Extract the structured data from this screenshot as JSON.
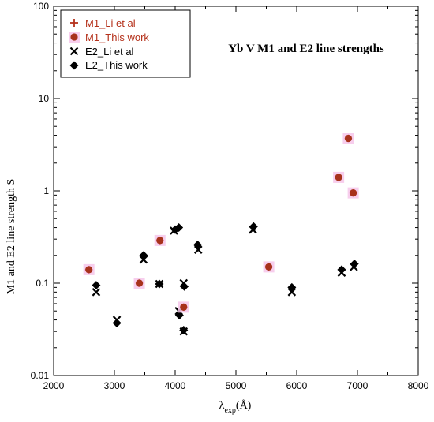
{
  "chart_data": {
    "type": "scatter",
    "title": "Yb V M1 and E2 line strengths",
    "xlabel": "λ",
    "xlabel_sub": "exp",
    "xlabel_unit": "(Å)",
    "ylabel": "M1 and E2 line strength S",
    "xlim": [
      2000,
      8000
    ],
    "ylim": [
      0.01,
      100
    ],
    "yscale": "log",
    "x_ticks": [
      2000,
      3000,
      4000,
      5000,
      6000,
      7000,
      8000
    ],
    "y_ticks": [
      0.01,
      0.1,
      1,
      10,
      100
    ],
    "x_tick_labels": [
      "2000",
      "3000",
      "4000",
      "5000",
      "6000",
      "7000",
      "8000"
    ],
    "y_tick_labels": [
      "0.01",
      "0.1",
      "1",
      "10",
      "100"
    ],
    "legend_position": "top-left",
    "series": [
      {
        "name": "M1_Li et al",
        "marker": "plus",
        "color": "#b5321c",
        "points": [
          [
            2580,
            0.14
          ],
          [
            3410,
            0.1
          ],
          [
            3750,
            0.29
          ],
          [
            4140,
            0.055
          ],
          [
            5540,
            0.15
          ],
          [
            6690,
            1.4
          ],
          [
            6850,
            3.7
          ],
          [
            6930,
            0.95
          ]
        ]
      },
      {
        "name": "M1_This work",
        "marker": "circle",
        "color": "#a8321c",
        "halo": "#f6c6ea",
        "points": [
          [
            2580,
            0.14
          ],
          [
            3410,
            0.1
          ],
          [
            3750,
            0.29
          ],
          [
            4140,
            0.055
          ],
          [
            5540,
            0.15
          ],
          [
            6690,
            1.4
          ],
          [
            6850,
            3.7
          ],
          [
            6930,
            0.95
          ]
        ]
      },
      {
        "name": "E2_Li et al",
        "marker": "x",
        "color": "#000000",
        "points": [
          [
            2700,
            0.08
          ],
          [
            3040,
            0.04
          ],
          [
            3480,
            0.18
          ],
          [
            3740,
            0.098
          ],
          [
            3980,
            0.37
          ],
          [
            4060,
            0.05
          ],
          [
            4140,
            0.1
          ],
          [
            4140,
            0.03
          ],
          [
            4380,
            0.23
          ],
          [
            5280,
            0.38
          ],
          [
            5920,
            0.08
          ],
          [
            6740,
            0.13
          ],
          [
            6940,
            0.15
          ]
        ]
      },
      {
        "name": "E2_This work",
        "marker": "diamond",
        "color": "#000000",
        "points": [
          [
            2700,
            0.095
          ],
          [
            3040,
            0.037
          ],
          [
            3480,
            0.2
          ],
          [
            3740,
            0.098
          ],
          [
            4000,
            0.38
          ],
          [
            4060,
            0.4
          ],
          [
            4070,
            0.045
          ],
          [
            4150,
            0.092
          ],
          [
            4140,
            0.031
          ],
          [
            4370,
            0.26
          ],
          [
            5290,
            0.41
          ],
          [
            5920,
            0.09
          ],
          [
            6740,
            0.14
          ],
          [
            6950,
            0.162
          ]
        ]
      }
    ]
  }
}
